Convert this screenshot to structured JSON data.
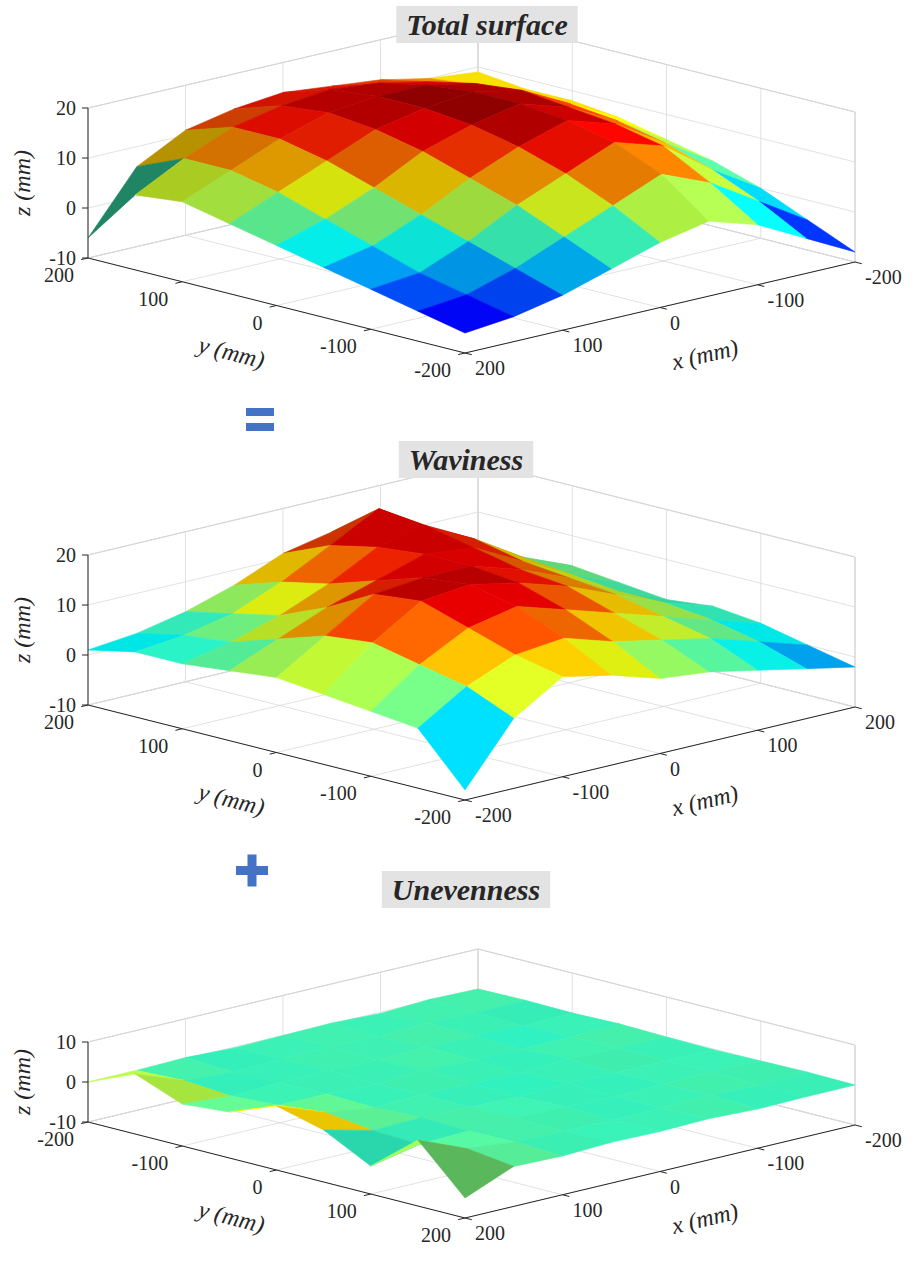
{
  "chart_data": [
    {
      "type": "surface",
      "title": "Total surface",
      "x_label": "x (mm)",
      "y_label": "y (mm)",
      "z_label": "z (mm)",
      "x": [
        -200,
        -150,
        -100,
        -50,
        0,
        50,
        100,
        150,
        200
      ],
      "y": [
        -200,
        -150,
        -100,
        -50,
        0,
        50,
        100,
        150,
        200
      ],
      "z": [
        [
          -8,
          -3,
          2,
          5,
          3,
          0,
          -3,
          -5,
          -6
        ],
        [
          -4,
          2,
          8,
          12,
          8,
          4,
          0,
          -3,
          -4
        ],
        [
          0,
          6,
          13,
          16,
          12,
          8,
          3,
          -1,
          -2
        ],
        [
          3,
          9,
          15,
          18,
          15,
          11,
          6,
          2,
          0
        ],
        [
          5,
          11,
          16,
          19,
          17,
          14,
          9,
          5,
          2
        ],
        [
          7,
          12,
          17,
          19,
          18,
          16,
          12,
          8,
          4
        ],
        [
          8,
          12,
          16,
          18,
          18,
          17,
          14,
          10,
          6
        ],
        [
          8,
          11,
          14,
          16,
          17,
          16,
          14,
          10,
          5
        ],
        [
          9,
          10,
          12,
          13,
          14,
          13,
          11,
          6,
          -6
        ]
      ],
      "xlim": [
        200,
        -200
      ],
      "ylim": [
        200,
        -200
      ],
      "zlim": [
        -10,
        20
      ],
      "xticks": [
        -200,
        -100,
        0,
        100,
        200
      ],
      "yticks": [
        -200,
        -100,
        0,
        100,
        200
      ],
      "zticks": [
        -10,
        0,
        10,
        20
      ],
      "grid": true
    },
    {
      "type": "surface",
      "title": "Waviness",
      "x_label": "x (mm)",
      "y_label": "y (mm)",
      "z_label": "z (mm)",
      "x": [
        -200,
        -150,
        -100,
        -50,
        0,
        50,
        100,
        150,
        200
      ],
      "y": [
        -200,
        -150,
        -100,
        -50,
        0,
        50,
        100,
        150,
        200
      ],
      "z": [
        [
          -8,
          4,
          10,
          8,
          5,
          4,
          2,
          0,
          -2
        ],
        [
          2,
          8,
          12,
          13,
          10,
          8,
          6,
          3,
          0
        ],
        [
          3,
          10,
          15,
          17,
          14,
          11,
          8,
          5,
          2
        ],
        [
          4,
          12,
          18,
          19,
          17,
          14,
          10,
          6,
          3
        ],
        [
          5,
          11,
          17,
          18,
          18,
          15,
          11,
          6,
          2
        ],
        [
          4,
          8,
          12,
          15,
          18,
          17,
          12,
          7,
          3
        ],
        [
          3,
          5,
          8,
          12,
          17,
          19,
          14,
          8,
          4
        ],
        [
          3,
          4,
          6,
          10,
          15,
          20,
          14,
          7,
          2
        ],
        [
          1,
          2,
          4,
          7,
          11,
          13,
          9,
          4,
          0
        ]
      ],
      "xlim": [
        -200,
        200
      ],
      "ylim": [
        200,
        -200
      ],
      "zlim": [
        -10,
        20
      ],
      "xticks": [
        -200,
        -100,
        0,
        100,
        200
      ],
      "yticks": [
        -200,
        -100,
        0,
        100,
        200
      ],
      "zticks": [
        -10,
        0,
        10,
        20
      ],
      "grid": true
    },
    {
      "type": "surface",
      "title": "Unevenness",
      "x_label": "x (mm)",
      "y_label": "y (mm)",
      "z_label": "z (mm)",
      "x": [
        -200,
        -150,
        -100,
        -50,
        0,
        50,
        100,
        150,
        200
      ],
      "y": [
        -200,
        -150,
        -100,
        -50,
        0,
        50,
        100,
        150,
        200
      ],
      "z": [
        [
          0,
          0.3,
          -0.3,
          0.2,
          0,
          -0.2,
          0.3,
          0,
          0
        ],
        [
          0.2,
          0,
          0.4,
          -0.2,
          0.3,
          0,
          -0.3,
          0.5,
          5
        ],
        [
          0,
          -0.3,
          0,
          0.3,
          -0.2,
          0.2,
          0,
          -0.4,
          0.5
        ],
        [
          0.3,
          0,
          -0.2,
          0,
          0.4,
          -0.3,
          0.2,
          0.3,
          1.5
        ],
        [
          0,
          0.2,
          0.3,
          -0.3,
          0,
          0.2,
          -0.2,
          1.5,
          6
        ],
        [
          -0.2,
          0,
          -0.2,
          0.2,
          -0.3,
          0,
          0.3,
          0,
          3
        ],
        [
          0,
          0.3,
          0,
          -0.2,
          0.2,
          0.3,
          0,
          -0.5,
          -3
        ],
        [
          0.2,
          -0.2,
          0.3,
          0,
          -0.2,
          0,
          0.2,
          1.5,
          6.5
        ],
        [
          0,
          0,
          -0.2,
          0.3,
          0,
          0.2,
          -0.3,
          0,
          -5
        ]
      ],
      "xlim": [
        200,
        -200
      ],
      "ylim": [
        -200,
        200
      ],
      "zlim": [
        -10,
        10
      ],
      "xticks": [
        -200,
        -100,
        0,
        100,
        200
      ],
      "yticks": [
        -200,
        -100,
        0,
        100,
        200
      ],
      "zticks": [
        -10,
        0,
        10
      ],
      "grid": true
    }
  ]
}
